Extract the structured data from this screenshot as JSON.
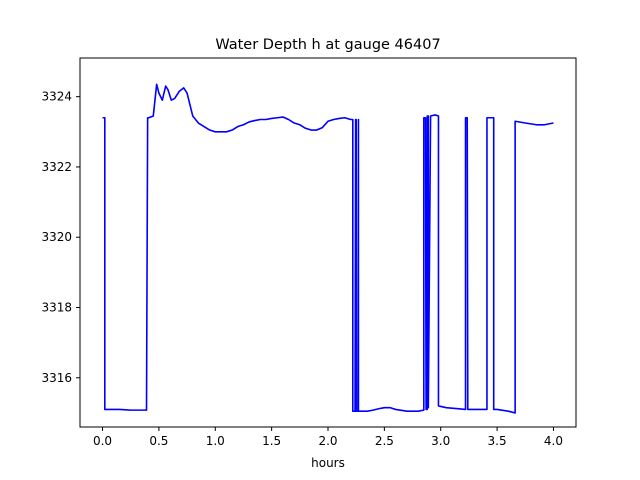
{
  "chart_data": {
    "type": "line",
    "title": "Water Depth h at gauge 46407",
    "xlabel": "hours",
    "ylabel": "",
    "xlim": [
      -0.2,
      4.2
    ],
    "ylim": [
      3314.6,
      3325.1
    ],
    "xticks": [
      0.0,
      0.5,
      1.0,
      1.5,
      2.0,
      2.5,
      3.0,
      3.5,
      4.0
    ],
    "xtick_labels": [
      "0.0",
      "0.5",
      "1.0",
      "1.5",
      "2.0",
      "2.5",
      "3.0",
      "3.5",
      "4.0"
    ],
    "yticks": [
      3316,
      3318,
      3320,
      3322,
      3324
    ],
    "ytick_labels": [
      "3316",
      "3318",
      "3320",
      "3322",
      "3324"
    ],
    "grid": false,
    "series": [
      {
        "color": "#0000ff",
        "x": [
          0.0,
          0.02,
          0.02,
          0.15,
          0.25,
          0.39,
          0.4,
          0.41,
          0.45,
          0.48,
          0.5,
          0.53,
          0.56,
          0.58,
          0.61,
          0.64,
          0.68,
          0.72,
          0.75,
          0.8,
          0.85,
          0.9,
          0.95,
          1.0,
          1.05,
          1.1,
          1.15,
          1.2,
          1.25,
          1.3,
          1.35,
          1.4,
          1.45,
          1.5,
          1.55,
          1.6,
          1.65,
          1.7,
          1.75,
          1.8,
          1.85,
          1.9,
          1.95,
          2.0,
          2.05,
          2.1,
          2.15,
          2.2,
          2.22,
          2.22,
          2.24,
          2.245,
          2.25,
          2.25,
          2.265,
          2.27,
          2.27,
          2.35,
          2.4,
          2.45,
          2.5,
          2.55,
          2.6,
          2.7,
          2.8,
          2.85,
          2.85,
          2.865,
          2.87,
          2.88,
          2.88,
          2.89,
          2.89,
          2.91,
          2.95,
          2.98,
          2.98,
          3.05,
          3.15,
          3.22,
          3.22,
          3.235,
          3.24,
          3.24,
          3.4,
          3.41,
          3.41,
          3.47,
          3.47,
          3.5,
          3.6,
          3.66,
          3.66,
          3.75,
          3.85,
          3.92,
          4.0
        ],
        "y": [
          3323.4,
          3323.4,
          3315.1,
          3315.1,
          3315.08,
          3315.08,
          3323.4,
          3323.4,
          3323.45,
          3324.35,
          3324.1,
          3323.9,
          3324.3,
          3324.2,
          3323.9,
          3323.95,
          3324.15,
          3324.25,
          3324.1,
          3323.45,
          3323.25,
          3323.15,
          3323.05,
          3323.0,
          3323.0,
          3323.0,
          3323.05,
          3323.15,
          3323.2,
          3323.28,
          3323.32,
          3323.35,
          3323.35,
          3323.38,
          3323.4,
          3323.42,
          3323.35,
          3323.25,
          3323.2,
          3323.1,
          3323.05,
          3323.05,
          3323.12,
          3323.3,
          3323.35,
          3323.38,
          3323.4,
          3323.35,
          3323.35,
          3315.05,
          3315.05,
          3323.35,
          3323.35,
          3315.05,
          3315.05,
          3323.35,
          3315.05,
          3315.05,
          3315.08,
          3315.12,
          3315.15,
          3315.15,
          3315.1,
          3315.05,
          3315.05,
          3315.08,
          3323.4,
          3323.4,
          3315.1,
          3315.1,
          3323.45,
          3323.45,
          3315.15,
          3323.45,
          3323.48,
          3323.45,
          3315.2,
          3315.15,
          3315.12,
          3315.1,
          3323.4,
          3323.4,
          3315.1,
          3315.1,
          3315.1,
          3315.1,
          3323.4,
          3323.4,
          3315.1,
          3315.1,
          3315.05,
          3315.0,
          3323.3,
          3323.25,
          3323.2,
          3323.2,
          3323.25
        ]
      }
    ]
  }
}
